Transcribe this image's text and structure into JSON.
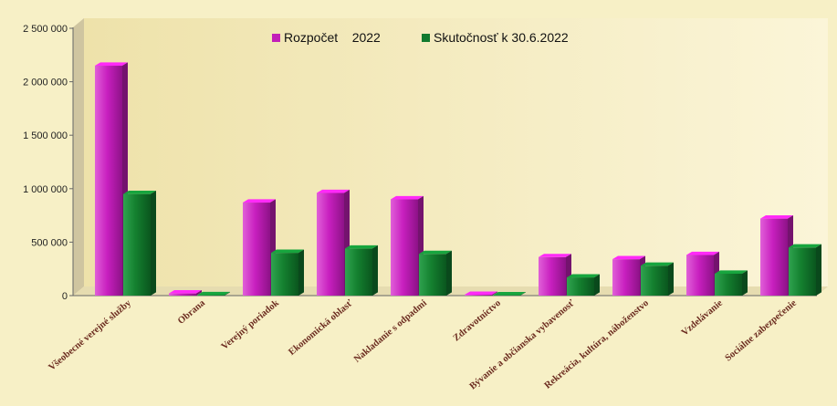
{
  "chart_data": {
    "type": "bar",
    "title": "",
    "xlabel": "",
    "ylabel": "",
    "ylim": [
      0,
      2500000
    ],
    "yticks": [
      0,
      500000,
      1000000,
      1500000,
      2000000,
      2500000
    ],
    "ytick_labels": [
      "0",
      "500 000",
      "1 000 000",
      "1 500 000",
      "2 000 000",
      "2 500 000"
    ],
    "grid": false,
    "legend_position": "top-center",
    "categories": [
      "Všeobecné verejné služby",
      "Obrana",
      "Verejný poriadok",
      "Ekonomická oblasť",
      "Nakladanie s odpadmi",
      "Zdravotníctvo",
      "Bývanie a občianska vybavenosť",
      "Rekreácia, kultúra, náboženstvo",
      "Vzdelávanie",
      "Sociálne zabezpečenie"
    ],
    "series": [
      {
        "name": "Rozpočet    2022",
        "color": "#c21fb8",
        "values": [
          2150000,
          20000,
          870000,
          960000,
          900000,
          8000,
          360000,
          340000,
          380000,
          720000
        ]
      },
      {
        "name": "Skutočnosť k 30.6.2022",
        "color": "#117a2e",
        "values": [
          950000,
          4000,
          400000,
          440000,
          390000,
          3000,
          170000,
          280000,
          205000,
          450000
        ]
      }
    ]
  }
}
